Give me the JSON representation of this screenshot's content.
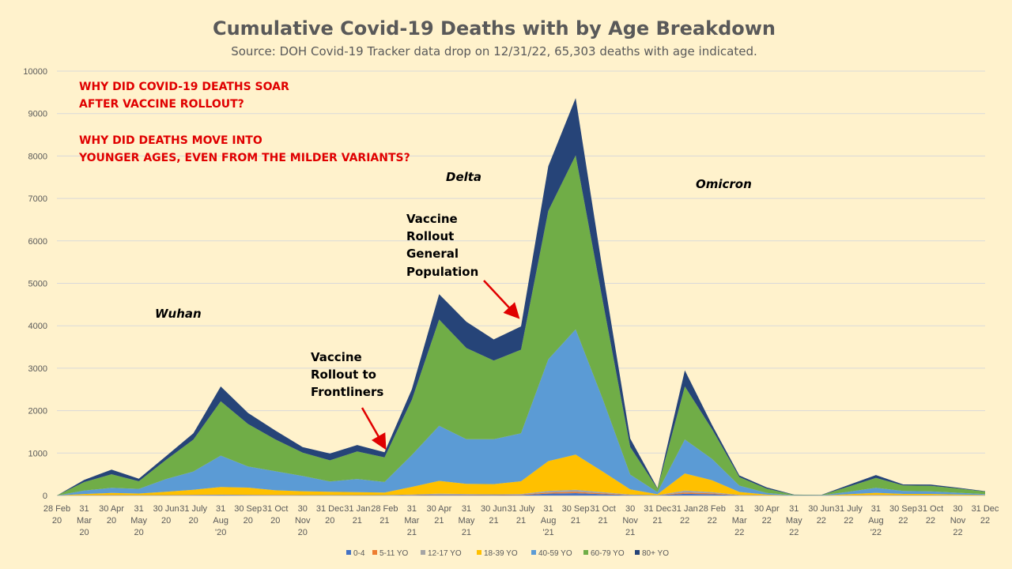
{
  "chart_data": {
    "type": "area",
    "stacked": true,
    "title": "Cumulative Covid-19 Deaths with by Age Breakdown",
    "subtitle": "Source: DOH Covid-19 Tracker data drop on 12/31/22, 65,303 deaths with age indicated.",
    "ylim": [
      0,
      10000
    ],
    "yticks": [
      0,
      1000,
      2000,
      3000,
      4000,
      5000,
      6000,
      7000,
      8000,
      9000,
      10000
    ],
    "grid": true,
    "legend_position": "bottom",
    "categories": [
      [
        "28 Feb",
        "20"
      ],
      [
        "31",
        "Mar",
        "20"
      ],
      [
        "30 Apr",
        "20"
      ],
      [
        "31",
        "May",
        "20"
      ],
      [
        "30 Jun",
        "20"
      ],
      [
        "31 July",
        "20"
      ],
      [
        "31",
        "Aug",
        "'20"
      ],
      [
        "30 Sep",
        "20"
      ],
      [
        "31 Oct",
        "20"
      ],
      [
        "30",
        "Nov",
        "20"
      ],
      [
        "31 Dec",
        "20"
      ],
      [
        "31 Jan",
        "21"
      ],
      [
        "28 Feb",
        "21"
      ],
      [
        "31",
        "Mar",
        "21"
      ],
      [
        "30 Apr",
        "21"
      ],
      [
        "31",
        "May",
        "21"
      ],
      [
        "30 Jun",
        "21"
      ],
      [
        "31 July",
        "21"
      ],
      [
        "31",
        "Aug",
        "'21"
      ],
      [
        "30 Sep",
        "21"
      ],
      [
        "31 Oct",
        "21"
      ],
      [
        "30",
        "Nov",
        "21"
      ],
      [
        "31 Dec",
        "21"
      ],
      [
        "31 Jan",
        "22"
      ],
      [
        "28 Feb",
        "22"
      ],
      [
        "31",
        "Mar",
        "22"
      ],
      [
        "30 Apr",
        "22"
      ],
      [
        "31",
        "May",
        "22"
      ],
      [
        "30 Jun",
        "22"
      ],
      [
        "31 July",
        "22"
      ],
      [
        "31",
        "Aug",
        "'22"
      ],
      [
        "30 Sep",
        "22"
      ],
      [
        "31 Oct",
        "22"
      ],
      [
        "30",
        "Nov",
        "22"
      ],
      [
        "31 Dec",
        "22"
      ]
    ],
    "series": [
      {
        "name": "0-4",
        "color": "#4472c4",
        "values": [
          0,
          3,
          5,
          3,
          5,
          8,
          10,
          8,
          6,
          5,
          4,
          5,
          4,
          8,
          15,
          12,
          10,
          12,
          45,
          55,
          30,
          10,
          3,
          40,
          30,
          5,
          2,
          0,
          0,
          2,
          5,
          3,
          3,
          2,
          1
        ]
      },
      {
        "name": "5-11 YO",
        "color": "#ed7d31",
        "values": [
          0,
          1,
          2,
          1,
          2,
          3,
          4,
          3,
          3,
          2,
          2,
          2,
          2,
          5,
          10,
          8,
          6,
          8,
          25,
          30,
          20,
          5,
          2,
          30,
          20,
          3,
          1,
          0,
          0,
          1,
          3,
          2,
          2,
          1,
          1
        ]
      },
      {
        "name": "12-17 YO",
        "color": "#a5a5a5",
        "values": [
          0,
          2,
          3,
          2,
          3,
          5,
          6,
          5,
          4,
          3,
          3,
          3,
          3,
          10,
          20,
          15,
          12,
          15,
          40,
          50,
          30,
          8,
          3,
          50,
          30,
          5,
          2,
          0,
          0,
          2,
          5,
          3,
          3,
          2,
          1
        ]
      },
      {
        "name": "18-39 YO",
        "color": "#ffc000",
        "values": [
          0,
          30,
          50,
          40,
          80,
          120,
          180,
          170,
          110,
          90,
          80,
          70,
          60,
          180,
          300,
          240,
          240,
          300,
          700,
          830,
          480,
          120,
          22,
          400,
          280,
          70,
          15,
          0,
          0,
          25,
          50,
          30,
          30,
          20,
          10
        ]
      },
      {
        "name": "40-59 YO",
        "color": "#5b9bd5",
        "values": [
          0,
          80,
          120,
          110,
          300,
          430,
          740,
          500,
          450,
          360,
          240,
          310,
          250,
          750,
          1300,
          1050,
          1060,
          1130,
          2400,
          2950,
          1700,
          350,
          50,
          800,
          500,
          150,
          40,
          5,
          5,
          60,
          120,
          70,
          60,
          40,
          20
        ]
      },
      {
        "name": "60-79 YO",
        "color": "#70ad47",
        "values": [
          0,
          200,
          320,
          180,
          450,
          750,
          1280,
          1000,
          750,
          550,
          500,
          650,
          580,
          1300,
          2500,
          2150,
          1850,
          1970,
          3500,
          4100,
          2300,
          650,
          80,
          1250,
          700,
          200,
          100,
          10,
          5,
          120,
          230,
          130,
          130,
          100,
          60
        ]
      },
      {
        "name": "80+ YO",
        "color": "#264478",
        "values": [
          0,
          50,
          110,
          60,
          90,
          150,
          350,
          260,
          210,
          130,
          160,
          150,
          120,
          250,
          600,
          620,
          500,
          550,
          1050,
          1350,
          700,
          200,
          15,
          380,
          100,
          40,
          30,
          5,
          5,
          40,
          70,
          22,
          30,
          20,
          10
        ]
      }
    ]
  },
  "annotations": {
    "question1": [
      "WHY DID COVID-19 DEATHS SOAR",
      "AFTER VACCINE ROLLOUT?"
    ],
    "question2": [
      "WHY DID DEATHS MOVE INTO",
      "YOUNGER AGES, EVEN FROM THE MILDER VARIANTS?"
    ],
    "wuhan": "Wuhan",
    "delta": "Delta",
    "omicron": "Omicron",
    "frontliners": [
      "Vaccine",
      "Rollout to",
      "Frontliners"
    ],
    "general": [
      "Vaccine",
      "Rollout",
      "General",
      "Population"
    ]
  },
  "colors": {
    "background": "#fff2cc",
    "arrow": "#e00000"
  }
}
